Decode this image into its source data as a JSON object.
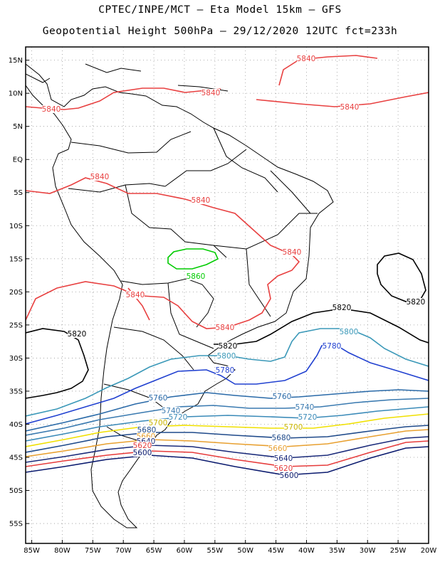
{
  "header": {
    "line1": "CPTEC/INPE/MCT –  Eta Model 15km – GFS",
    "line2": "Geopotential Height 500hPa – 29/12/2020 12UTC fct=233h"
  },
  "map": {
    "lon_range": [
      -86,
      -20
    ],
    "lat_range": [
      -58,
      17
    ],
    "grid": "dotted",
    "lat_ticks": [
      "15N",
      "10N",
      "5N",
      "EQ",
      "5S",
      "10S",
      "15S",
      "20S",
      "25S",
      "30S",
      "35S",
      "40S",
      "45S",
      "50S",
      "55S"
    ],
    "lon_ticks": [
      "85W",
      "80W",
      "75W",
      "70W",
      "65W",
      "60W",
      "55W",
      "50W",
      "45W",
      "40W",
      "35W",
      "30W",
      "25W",
      "20W"
    ]
  },
  "contour_colors": {
    "5600": "#0a1a6e",
    "5620": "#e63c3c",
    "5640": "#1a2a7a",
    "5660": "#e8a030",
    "5680": "#1f4a8a",
    "5700": "#f0e000",
    "5720": "#3a8ab8",
    "5740": "#3a7ab0",
    "5760": "#2a6aa8",
    "5780": "#2040d0",
    "5800": "#3a98b8",
    "5820": "#000000",
    "5840": "#e84040",
    "5860": "#00cc00"
  },
  "contour_labels": [
    {
      "value": "5840",
      "color": "#e84040"
    },
    {
      "value": "5840",
      "color": "#e84040"
    },
    {
      "value": "5840",
      "color": "#e84040"
    },
    {
      "value": "5840",
      "color": "#e84040"
    },
    {
      "value": "5840",
      "color": "#e84040"
    },
    {
      "value": "5840",
      "color": "#e84040"
    },
    {
      "value": "5840",
      "color": "#e84040"
    },
    {
      "value": "5840",
      "color": "#e84040"
    },
    {
      "value": "5840",
      "color": "#e84040"
    },
    {
      "value": "5860",
      "color": "#00cc00"
    },
    {
      "value": "5820",
      "color": "#000000"
    },
    {
      "value": "5820",
      "color": "#000000"
    },
    {
      "value": "5820",
      "color": "#000000"
    },
    {
      "value": "5820",
      "color": "#000000"
    },
    {
      "value": "5800",
      "color": "#3a98b8"
    },
    {
      "value": "5800",
      "color": "#3a98b8"
    },
    {
      "value": "5780",
      "color": "#2040d0"
    },
    {
      "value": "5780",
      "color": "#2040d0"
    },
    {
      "value": "5760",
      "color": "#2a6aa8"
    },
    {
      "value": "5760",
      "color": "#2a6aa8"
    },
    {
      "value": "5740",
      "color": "#3a7ab0"
    },
    {
      "value": "5740",
      "color": "#3a7ab0"
    },
    {
      "value": "5720",
      "color": "#3a8ab8"
    },
    {
      "value": "5720",
      "color": "#3a8ab8"
    },
    {
      "value": "5700",
      "color": "#c8b400"
    },
    {
      "value": "5700",
      "color": "#c8b400"
    },
    {
      "value": "5680",
      "color": "#1f4a8a"
    },
    {
      "value": "5680",
      "color": "#1f4a8a"
    },
    {
      "value": "5660",
      "color": "#e8a030"
    },
    {
      "value": "5660",
      "color": "#e8a030"
    },
    {
      "value": "5640",
      "color": "#1a2a7a"
    },
    {
      "value": "5640",
      "color": "#1a2a7a"
    },
    {
      "value": "5620",
      "color": "#e63c3c"
    },
    {
      "value": "5620",
      "color": "#e63c3c"
    },
    {
      "value": "5600",
      "color": "#0a1a6e"
    },
    {
      "value": "5600",
      "color": "#0a1a6e"
    }
  ]
}
